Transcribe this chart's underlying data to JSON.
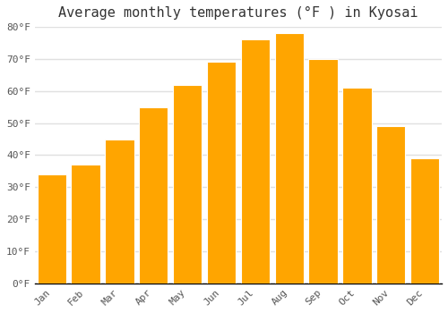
{
  "title": "Average monthly temperatures (°F ) in Kyosai",
  "months": [
    "Jan",
    "Feb",
    "Mar",
    "Apr",
    "May",
    "Jun",
    "Jul",
    "Aug",
    "Sep",
    "Oct",
    "Nov",
    "Dec"
  ],
  "values": [
    34,
    37,
    45,
    55,
    62,
    69,
    76,
    78,
    70,
    61,
    49,
    39
  ],
  "bar_color": "#FFA500",
  "bar_edge_color": "#ffffff",
  "background_color": "#ffffff",
  "grid_color": "#e0e0e0",
  "axis_color": "#000000",
  "tick_color": "#555555",
  "title_color": "#333333",
  "ylim": [
    0,
    80
  ],
  "yticks": [
    0,
    10,
    20,
    30,
    40,
    50,
    60,
    70,
    80
  ],
  "title_fontsize": 11,
  "tick_fontsize": 8,
  "font_family": "monospace",
  "bar_width": 0.85
}
